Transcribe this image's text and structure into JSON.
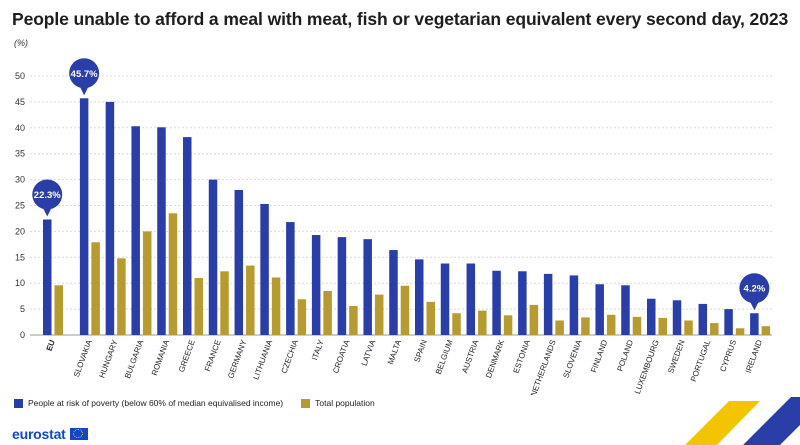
{
  "title": "People unable to afford a meal with meat, fish or vegetarian equivalent every second day, 2023",
  "unit": "(%)",
  "legend": {
    "poverty_label": "People at risk of poverty (below 60% of median equivalised income)",
    "total_label": "Total population"
  },
  "logo_text": "eurostat",
  "colors": {
    "poverty": "#2a3ea8",
    "total": "#b89b30",
    "callout": "#2a3ea8",
    "grid": "#d9d9d9",
    "corner_yellow": "#f2c500",
    "corner_blue": "#2a3ea8"
  },
  "chart_data": {
    "type": "bar",
    "categories": [
      "EU",
      "SLOVAKIA",
      "HUNGARY",
      "BULGARIA",
      "ROMANIA",
      "GREECE",
      "FRANCE",
      "GERMANY",
      "LITHUANIA",
      "CZECHIA",
      "ITALY",
      "CROATIA",
      "LATVIA",
      "MALTA",
      "SPAIN",
      "BELGIUM",
      "AUSTRIA",
      "DENMARK",
      "ESTONIA",
      "NETHERLANDS",
      "SLOVENIA",
      "FINLAND",
      "POLAND",
      "LUXEMBOURG",
      "SWEDEN",
      "PORTUGAL",
      "CYPRUS",
      "IRELAND"
    ],
    "series": [
      {
        "name": "People at risk of poverty (below 60% of median equivalised income)",
        "values": [
          22.3,
          45.7,
          45.0,
          40.3,
          40.1,
          38.2,
          30.0,
          28.0,
          25.3,
          21.8,
          19.3,
          18.9,
          18.5,
          16.4,
          14.6,
          13.8,
          13.8,
          12.4,
          12.3,
          11.8,
          11.5,
          9.8,
          9.6,
          7.0,
          6.7,
          6.0,
          5.0,
          4.2
        ]
      },
      {
        "name": "Total population",
        "values": [
          9.6,
          17.9,
          14.8,
          20.0,
          23.5,
          11.0,
          12.3,
          13.4,
          11.1,
          6.9,
          8.5,
          5.6,
          7.8,
          9.5,
          6.4,
          4.2,
          4.7,
          3.8,
          5.8,
          2.8,
          3.4,
          3.9,
          3.5,
          3.3,
          2.8,
          2.3,
          1.3,
          1.7
        ]
      }
    ],
    "yticks": [
      0,
      5,
      10,
      15,
      20,
      25,
      30,
      35,
      40,
      45,
      50
    ],
    "ylim": [
      0,
      50
    ],
    "grid": true,
    "legend_position": "bottom-left",
    "callouts": [
      {
        "category": "EU",
        "label": "22.3%"
      },
      {
        "category": "SLOVAKIA",
        "label": "45.7%"
      },
      {
        "category": "IRELAND",
        "label": "4.2%"
      }
    ]
  }
}
